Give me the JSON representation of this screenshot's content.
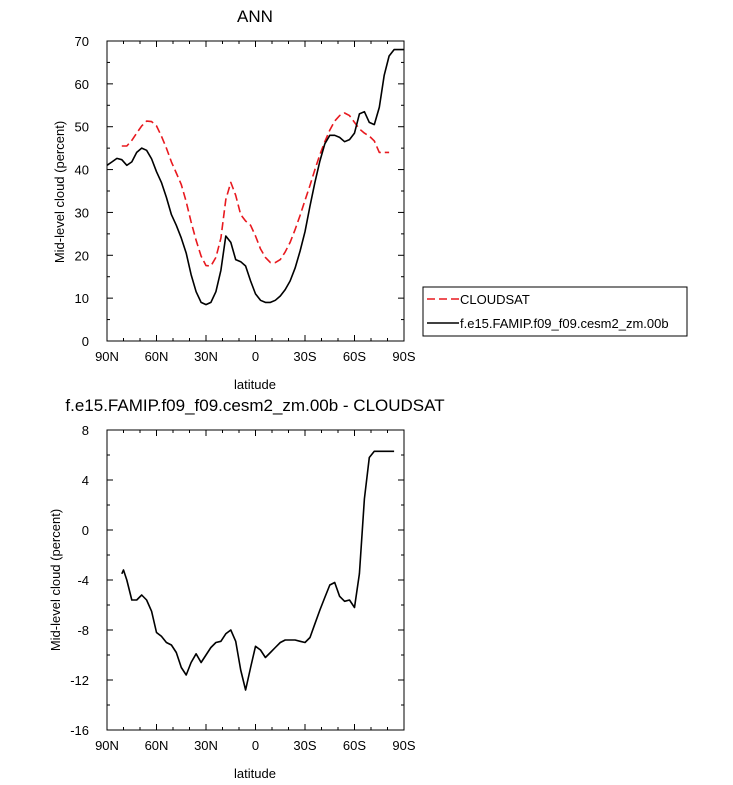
{
  "chart_data": [
    {
      "type": "line",
      "title": "ANN",
      "xlabel": "latitude",
      "ylabel": "Mid-level cloud (percent)",
      "xlim": [
        90,
        -90
      ],
      "ylim": [
        0,
        70
      ],
      "x_ticks": [
        {
          "value": 90,
          "label": "90N"
        },
        {
          "value": 60,
          "label": "60N"
        },
        {
          "value": 30,
          "label": "30N"
        },
        {
          "value": 0,
          "label": "0"
        },
        {
          "value": -30,
          "label": "30S"
        },
        {
          "value": -60,
          "label": "60S"
        },
        {
          "value": -90,
          "label": "90S"
        }
      ],
      "y_ticks": [
        {
          "value": 0,
          "label": "0"
        },
        {
          "value": 10,
          "label": "10"
        },
        {
          "value": 20,
          "label": "20"
        },
        {
          "value": 30,
          "label": "30"
        },
        {
          "value": 40,
          "label": "40"
        },
        {
          "value": 50,
          "label": "50"
        },
        {
          "value": 60,
          "label": "60"
        },
        {
          "value": 70,
          "label": "70"
        }
      ],
      "legend_position": "outside-right",
      "series": [
        {
          "name": "CLOUDSAT",
          "color": "#e8191f",
          "dashed": true,
          "x": [
            81,
            78,
            75,
            72,
            69,
            66,
            63,
            60,
            57,
            54,
            51,
            48,
            45,
            42,
            39,
            36,
            33,
            30,
            27,
            24,
            21,
            18,
            15,
            12,
            9,
            6,
            3,
            0,
            -3,
            -6,
            -9,
            -12,
            -15,
            -18,
            -21,
            -24,
            -27,
            -30,
            -33,
            -36,
            -39,
            -42,
            -45,
            -48,
            -51,
            -54,
            -57,
            -60,
            -63,
            -66,
            -69,
            -72,
            -75,
            -78,
            -81
          ],
          "y": [
            45.5,
            45.5,
            46.8,
            48.5,
            50.2,
            51.3,
            51.2,
            50.2,
            47.8,
            45.0,
            41.8,
            39.2,
            36.5,
            32.5,
            27.8,
            23.5,
            19.8,
            17.6,
            17.5,
            19.5,
            24.0,
            33.0,
            37.0,
            34.0,
            29.5,
            28.0,
            27.0,
            24.5,
            21.5,
            19.5,
            18.3,
            18.3,
            19.0,
            20.8,
            23.0,
            26.0,
            29.3,
            32.8,
            36.3,
            40.0,
            43.5,
            46.5,
            49.2,
            51.3,
            52.6,
            53.2,
            52.6,
            51.0,
            49.5,
            48.5,
            47.8,
            46.7,
            44.0,
            44.0,
            44.0
          ]
        },
        {
          "name": "f.e15.FAMIP.f09_f09.cesm2_zm.00b",
          "color": "#000000",
          "dashed": false,
          "x": [
            90,
            87,
            84,
            81,
            78,
            75,
            72,
            69,
            66,
            63,
            60,
            57,
            54,
            51,
            48,
            45,
            42,
            39,
            36,
            33,
            30,
            27,
            24,
            21,
            18,
            15,
            12,
            9,
            6,
            3,
            0,
            -3,
            -6,
            -9,
            -12,
            -15,
            -18,
            -21,
            -24,
            -27,
            -30,
            -33,
            -36,
            -39,
            -42,
            -45,
            -48,
            -51,
            -54,
            -57,
            -60,
            -63,
            -66,
            -69,
            -72,
            -75,
            -78,
            -81,
            -84,
            -87,
            -90
          ],
          "y": [
            41.0,
            41.8,
            42.6,
            42.3,
            41.0,
            41.8,
            44.0,
            45.0,
            44.5,
            42.5,
            39.5,
            37.0,
            33.5,
            29.5,
            27.0,
            24.0,
            20.5,
            15.5,
            11.5,
            9.0,
            8.5,
            9.0,
            11.5,
            16.5,
            24.5,
            23.0,
            19.0,
            18.5,
            17.5,
            14.0,
            11.0,
            9.5,
            9.0,
            9.0,
            9.5,
            10.5,
            12.0,
            14.0,
            17.0,
            21.0,
            25.5,
            31.5,
            37.0,
            42.0,
            46.0,
            48.0,
            48.0,
            47.5,
            46.5,
            47.0,
            48.5,
            53.0,
            53.5,
            51.0,
            50.5,
            54.5,
            62.0,
            66.5,
            68.0,
            68.0,
            68.0
          ]
        }
      ]
    },
    {
      "type": "line",
      "title": "f.e15.FAMIP.f09_f09.cesm2_zm.00b - CLOUDSAT",
      "xlabel": "latitude",
      "ylabel": "Mid-level cloud (percent)",
      "xlim": [
        90,
        -90
      ],
      "ylim": [
        -16,
        8
      ],
      "x_ticks": [
        {
          "value": 90,
          "label": "90N"
        },
        {
          "value": 60,
          "label": "60N"
        },
        {
          "value": 30,
          "label": "30N"
        },
        {
          "value": 0,
          "label": "0"
        },
        {
          "value": -30,
          "label": "30S"
        },
        {
          "value": -60,
          "label": "60S"
        },
        {
          "value": -90,
          "label": "90S"
        }
      ],
      "y_ticks": [
        {
          "value": 8,
          "label": "8"
        },
        {
          "value": 4,
          "label": "4"
        },
        {
          "value": 0,
          "label": "0"
        },
        {
          "value": -4,
          "label": "-4"
        },
        {
          "value": -8,
          "label": "-8"
        },
        {
          "value": -12,
          "label": "-12"
        },
        {
          "value": -16,
          "label": "-16"
        }
      ],
      "series": [
        {
          "color": "#000000",
          "dashed": false,
          "x": [
            81,
            80,
            78,
            75,
            72,
            69,
            66,
            63,
            60,
            57,
            54,
            51,
            48,
            45,
            42,
            39,
            36,
            33,
            30,
            27,
            24,
            21,
            18,
            15,
            12,
            9,
            6,
            3,
            0,
            -3,
            -6,
            -9,
            -12,
            -15,
            -18,
            -21,
            -24,
            -27,
            -30,
            -33,
            -36,
            -39,
            -42,
            -45,
            -48,
            -51,
            -54,
            -57,
            -60,
            -63,
            -66,
            -69,
            -72,
            -75,
            -78,
            -81,
            -84
          ],
          "y": [
            -3.5,
            -3.2,
            -4.0,
            -5.6,
            -5.6,
            -5.2,
            -5.6,
            -6.5,
            -8.2,
            -8.5,
            -9.0,
            -9.2,
            -9.8,
            -11.0,
            -11.6,
            -10.6,
            -9.9,
            -10.6,
            -10.0,
            -9.4,
            -9.0,
            -8.9,
            -8.3,
            -8.0,
            -8.9,
            -11.2,
            -12.8,
            -11.0,
            -9.3,
            -9.6,
            -10.2,
            -9.8,
            -9.4,
            -9.0,
            -8.8,
            -8.8,
            -8.8,
            -8.9,
            -9.0,
            -8.6,
            -7.5,
            -6.4,
            -5.4,
            -4.4,
            -4.2,
            -5.3,
            -5.7,
            -5.6,
            -6.2,
            -3.5,
            2.5,
            5.8,
            6.3,
            6.3,
            6.3,
            6.3,
            6.3
          ]
        }
      ]
    }
  ],
  "legend": {
    "items": [
      {
        "label": "CLOUDSAT",
        "color": "#e8191f",
        "dashed": true
      },
      {
        "label": "f.e15.FAMIP.f09_f09.cesm2_zm.00b",
        "color": "#000000",
        "dashed": false
      }
    ]
  }
}
